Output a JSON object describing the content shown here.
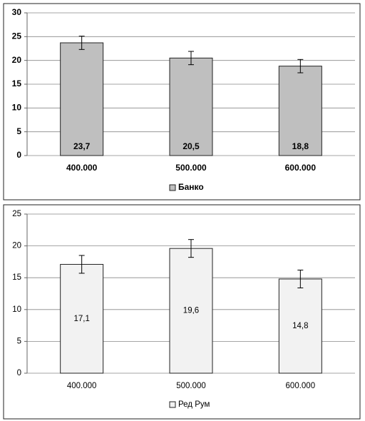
{
  "chart_data": [
    {
      "type": "bar",
      "categories": [
        "400.000",
        "500.000",
        "600.000"
      ],
      "series": [
        {
          "name": "Банко",
          "color": "#bfbfbf",
          "values": [
            23.7,
            20.5,
            18.8
          ],
          "value_labels": [
            "23,7",
            "20,5",
            "18,8"
          ],
          "errors": [
            1.4,
            1.4,
            1.4
          ]
        }
      ],
      "ylim": [
        0,
        30
      ],
      "yticks": [
        0,
        5,
        10,
        15,
        20,
        25,
        30
      ],
      "grid": true,
      "legend": "bottom"
    },
    {
      "type": "bar",
      "categories": [
        "400.000",
        "500.000",
        "600.000"
      ],
      "series": [
        {
          "name": "Ред Рум",
          "color": "#f2f2f2",
          "values": [
            17.1,
            19.6,
            14.8
          ],
          "value_labels": [
            "17,1",
            "19,6",
            "14,8"
          ],
          "errors": [
            1.4,
            1.4,
            1.4
          ]
        }
      ],
      "ylim": [
        0,
        25
      ],
      "yticks": [
        0,
        5,
        10,
        15,
        20,
        25
      ],
      "grid": true,
      "legend": "bottom"
    }
  ]
}
